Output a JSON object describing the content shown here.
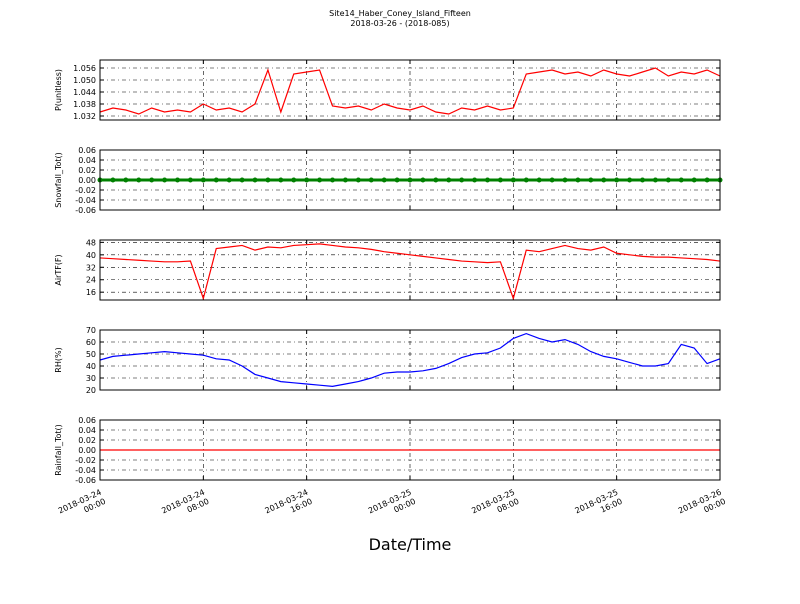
{
  "chart_data": [
    {
      "type": "line",
      "title": "Site14_Haber_Coney_Island_Fifteen",
      "subtitle": "2018-03-26 - (2018-085)",
      "ylabel": "P(unitless)",
      "color": "#ff0000",
      "grid": true,
      "x": [
        "2018-03-24 00:00",
        "2018-03-24 01:00",
        "2018-03-24 02:00",
        "2018-03-24 03:00",
        "2018-03-24 04:00",
        "2018-03-24 05:00",
        "2018-03-24 06:00",
        "2018-03-24 07:00",
        "2018-03-24 08:00",
        "2018-03-24 09:00",
        "2018-03-24 10:00",
        "2018-03-24 11:00",
        "2018-03-24 12:00",
        "2018-03-24 13:00",
        "2018-03-24 14:00",
        "2018-03-24 15:00",
        "2018-03-24 16:00",
        "2018-03-24 17:00",
        "2018-03-24 18:00",
        "2018-03-24 19:00",
        "2018-03-24 20:00",
        "2018-03-24 21:00",
        "2018-03-24 22:00",
        "2018-03-24 23:00",
        "2018-03-25 00:00",
        "2018-03-25 01:00",
        "2018-03-25 02:00",
        "2018-03-25 03:00",
        "2018-03-25 04:00",
        "2018-03-25 05:00",
        "2018-03-25 06:00",
        "2018-03-25 07:00",
        "2018-03-25 08:00",
        "2018-03-25 09:00",
        "2018-03-25 10:00",
        "2018-03-25 11:00",
        "2018-03-25 12:00",
        "2018-03-25 13:00",
        "2018-03-25 14:00",
        "2018-03-25 15:00",
        "2018-03-25 16:00",
        "2018-03-25 17:00",
        "2018-03-25 18:00",
        "2018-03-25 19:00",
        "2018-03-25 20:00",
        "2018-03-25 21:00",
        "2018-03-25 22:00",
        "2018-03-25 23:00",
        "2018-03-26 00:00"
      ],
      "values": [
        1.034,
        1.036,
        1.035,
        1.033,
        1.036,
        1.034,
        1.035,
        1.034,
        1.038,
        1.035,
        1.036,
        1.034,
        1.038,
        1.055,
        1.034,
        1.053,
        1.054,
        1.055,
        1.037,
        1.036,
        1.037,
        1.035,
        1.038,
        1.036,
        1.035,
        1.037,
        1.034,
        1.033,
        1.036,
        1.035,
        1.037,
        1.035,
        1.036,
        1.053,
        1.054,
        1.055,
        1.053,
        1.054,
        1.052,
        1.055,
        1.053,
        1.052,
        1.054,
        1.056,
        1.052,
        1.054,
        1.053,
        1.055,
        1.052
      ],
      "xlim": [
        "2018-03-24 00:00",
        "2018-03-26 00:00"
      ],
      "ylim": [
        1.03,
        1.06
      ],
      "yticks": [
        1.032,
        1.038,
        1.044,
        {
          "value": 1.05,
          "label": "1.050"
        },
        1.056
      ]
    },
    {
      "type": "line",
      "ylabel": "Snowfall_Tot()",
      "color": "#008000",
      "marker": "o",
      "grid": true,
      "x": [
        "2018-03-24 00:00",
        "2018-03-24 01:00",
        "2018-03-24 02:00",
        "2018-03-24 03:00",
        "2018-03-24 04:00",
        "2018-03-24 05:00",
        "2018-03-24 06:00",
        "2018-03-24 07:00",
        "2018-03-24 08:00",
        "2018-03-24 09:00",
        "2018-03-24 10:00",
        "2018-03-24 11:00",
        "2018-03-24 12:00",
        "2018-03-24 13:00",
        "2018-03-24 14:00",
        "2018-03-24 15:00",
        "2018-03-24 16:00",
        "2018-03-24 17:00",
        "2018-03-24 18:00",
        "2018-03-24 19:00",
        "2018-03-24 20:00",
        "2018-03-24 21:00",
        "2018-03-24 22:00",
        "2018-03-24 23:00",
        "2018-03-25 00:00",
        "2018-03-25 01:00",
        "2018-03-25 02:00",
        "2018-03-25 03:00",
        "2018-03-25 04:00",
        "2018-03-25 05:00",
        "2018-03-25 06:00",
        "2018-03-25 07:00",
        "2018-03-25 08:00",
        "2018-03-25 09:00",
        "2018-03-25 10:00",
        "2018-03-25 11:00",
        "2018-03-25 12:00",
        "2018-03-25 13:00",
        "2018-03-25 14:00",
        "2018-03-25 15:00",
        "2018-03-25 16:00",
        "2018-03-25 17:00",
        "2018-03-25 18:00",
        "2018-03-25 19:00",
        "2018-03-25 20:00",
        "2018-03-25 21:00",
        "2018-03-25 22:00",
        "2018-03-25 23:00",
        "2018-03-26 00:00"
      ],
      "values": [
        0,
        0,
        0,
        0,
        0,
        0,
        0,
        0,
        0,
        0,
        0,
        0,
        0,
        0,
        0,
        0,
        0,
        0,
        0,
        0,
        0,
        0,
        0,
        0,
        0,
        0,
        0,
        0,
        0,
        0,
        0,
        0,
        0,
        0,
        0,
        0,
        0,
        0,
        0,
        0,
        0,
        0,
        0,
        0,
        0,
        0,
        0,
        0,
        0
      ],
      "xlim": [
        "2018-03-24 00:00",
        "2018-03-26 00:00"
      ],
      "ylim": [
        -0.06,
        0.06
      ],
      "yticks": [
        -0.06,
        -0.04,
        -0.02,
        {
          "value": 0,
          "label": "0.00"
        },
        0.02,
        0.04,
        0.06
      ]
    },
    {
      "type": "line",
      "ylabel": "AirTF(F)",
      "color": "#ff0000",
      "grid": true,
      "x": [
        "2018-03-24 00:00",
        "2018-03-24 01:00",
        "2018-03-24 02:00",
        "2018-03-24 03:00",
        "2018-03-24 04:00",
        "2018-03-24 05:00",
        "2018-03-24 06:00",
        "2018-03-24 07:00",
        "2018-03-24 08:00",
        "2018-03-24 09:00",
        "2018-03-24 10:00",
        "2018-03-24 11:00",
        "2018-03-24 12:00",
        "2018-03-24 13:00",
        "2018-03-24 14:00",
        "2018-03-24 15:00",
        "2018-03-24 16:00",
        "2018-03-24 17:00",
        "2018-03-24 18:00",
        "2018-03-24 19:00",
        "2018-03-24 20:00",
        "2018-03-24 21:00",
        "2018-03-24 22:00",
        "2018-03-24 23:00",
        "2018-03-25 00:00",
        "2018-03-25 01:00",
        "2018-03-25 02:00",
        "2018-03-25 03:00",
        "2018-03-25 04:00",
        "2018-03-25 05:00",
        "2018-03-25 06:00",
        "2018-03-25 07:00",
        "2018-03-25 08:00",
        "2018-03-25 09:00",
        "2018-03-25 10:00",
        "2018-03-25 11:00",
        "2018-03-25 12:00",
        "2018-03-25 13:00",
        "2018-03-25 14:00",
        "2018-03-25 15:00",
        "2018-03-25 16:00",
        "2018-03-25 17:00",
        "2018-03-25 18:00",
        "2018-03-25 19:00",
        "2018-03-25 20:00",
        "2018-03-25 21:00",
        "2018-03-25 22:00",
        "2018-03-25 23:00",
        "2018-03-26 00:00"
      ],
      "values": [
        38,
        37.5,
        37,
        36.5,
        36,
        35.5,
        35.5,
        36,
        12,
        44,
        45,
        46,
        43,
        45,
        44.5,
        46,
        46.5,
        47,
        46,
        45,
        44.5,
        43.5,
        42,
        41,
        40,
        39,
        38,
        37,
        36,
        35.5,
        35,
        35.5,
        12,
        43,
        42,
        44,
        46,
        44,
        43,
        45,
        41,
        40,
        39,
        38.5,
        38.5,
        38,
        37.5,
        37,
        36
      ],
      "xlim": [
        "2018-03-24 00:00",
        "2018-03-26 00:00"
      ],
      "ylim": [
        11,
        49.5
      ],
      "yticks": [
        16,
        24,
        32,
        40,
        48
      ]
    },
    {
      "type": "line",
      "ylabel": "RH(%)",
      "color": "#0000ff",
      "grid": true,
      "x": [
        "2018-03-24 00:00",
        "2018-03-24 01:00",
        "2018-03-24 02:00",
        "2018-03-24 03:00",
        "2018-03-24 04:00",
        "2018-03-24 05:00",
        "2018-03-24 06:00",
        "2018-03-24 07:00",
        "2018-03-24 08:00",
        "2018-03-24 09:00",
        "2018-03-24 10:00",
        "2018-03-24 11:00",
        "2018-03-24 12:00",
        "2018-03-24 13:00",
        "2018-03-24 14:00",
        "2018-03-24 15:00",
        "2018-03-24 16:00",
        "2018-03-24 17:00",
        "2018-03-24 18:00",
        "2018-03-24 19:00",
        "2018-03-24 20:00",
        "2018-03-24 21:00",
        "2018-03-24 22:00",
        "2018-03-24 23:00",
        "2018-03-25 00:00",
        "2018-03-25 01:00",
        "2018-03-25 02:00",
        "2018-03-25 03:00",
        "2018-03-25 04:00",
        "2018-03-25 05:00",
        "2018-03-25 06:00",
        "2018-03-25 07:00",
        "2018-03-25 08:00",
        "2018-03-25 09:00",
        "2018-03-25 10:00",
        "2018-03-25 11:00",
        "2018-03-25 12:00",
        "2018-03-25 13:00",
        "2018-03-25 14:00",
        "2018-03-25 15:00",
        "2018-03-25 16:00",
        "2018-03-25 17:00",
        "2018-03-25 18:00",
        "2018-03-25 19:00",
        "2018-03-25 20:00",
        "2018-03-25 21:00",
        "2018-03-25 22:00",
        "2018-03-25 23:00",
        "2018-03-26 00:00"
      ],
      "values": [
        45,
        48,
        49,
        50,
        51,
        52,
        51,
        50,
        49,
        46,
        45,
        40,
        33,
        30,
        27,
        26,
        25,
        24,
        23,
        25,
        27,
        30,
        34,
        35,
        35,
        36,
        38,
        42,
        47,
        50,
        51,
        55,
        63,
        67,
        63,
        60,
        62,
        58,
        52,
        48,
        46,
        43,
        40,
        40,
        42,
        58,
        55,
        42,
        46
      ],
      "xlim": [
        "2018-03-24 00:00",
        "2018-03-26 00:00"
      ],
      "ylim": [
        20,
        70
      ],
      "yticks": [
        20,
        30,
        40,
        50,
        60,
        70
      ]
    },
    {
      "type": "line",
      "ylabel": "Rainfall_Tot()",
      "xlabel": "Date/Time",
      "color": "#ff0000",
      "grid": true,
      "x": [
        "2018-03-24 00:00",
        "2018-03-24 01:00",
        "2018-03-24 02:00",
        "2018-03-24 03:00",
        "2018-03-24 04:00",
        "2018-03-24 05:00",
        "2018-03-24 06:00",
        "2018-03-24 07:00",
        "2018-03-24 08:00",
        "2018-03-24 09:00",
        "2018-03-24 10:00",
        "2018-03-24 11:00",
        "2018-03-24 12:00",
        "2018-03-24 13:00",
        "2018-03-24 14:00",
        "2018-03-24 15:00",
        "2018-03-24 16:00",
        "2018-03-24 17:00",
        "2018-03-24 18:00",
        "2018-03-24 19:00",
        "2018-03-24 20:00",
        "2018-03-24 21:00",
        "2018-03-24 22:00",
        "2018-03-24 23:00",
        "2018-03-25 00:00",
        "2018-03-25 01:00",
        "2018-03-25 02:00",
        "2018-03-25 03:00",
        "2018-03-25 04:00",
        "2018-03-25 05:00",
        "2018-03-25 06:00",
        "2018-03-25 07:00",
        "2018-03-25 08:00",
        "2018-03-25 09:00",
        "2018-03-25 10:00",
        "2018-03-25 11:00",
        "2018-03-25 12:00",
        "2018-03-25 13:00",
        "2018-03-25 14:00",
        "2018-03-25 15:00",
        "2018-03-25 16:00",
        "2018-03-25 17:00",
        "2018-03-25 18:00",
        "2018-03-25 19:00",
        "2018-03-25 20:00",
        "2018-03-25 21:00",
        "2018-03-25 22:00",
        "2018-03-25 23:00",
        "2018-03-26 00:00"
      ],
      "values": [
        0,
        0,
        0,
        0,
        0,
        0,
        0,
        0,
        0,
        0,
        0,
        0,
        0,
        0,
        0,
        0,
        0,
        0,
        0,
        0,
        0,
        0,
        0,
        0,
        0,
        0,
        0,
        0,
        0,
        0,
        0,
        0,
        0,
        0,
        0,
        0,
        0,
        0,
        0,
        0,
        0,
        0,
        0,
        0,
        0,
        0,
        0,
        0,
        0
      ],
      "xlim": [
        "2018-03-24 00:00",
        "2018-03-26 00:00"
      ],
      "ylim": [
        -0.06,
        0.06
      ],
      "yticks": [
        -0.06,
        -0.04,
        -0.02,
        {
          "value": 0,
          "label": "0.00"
        },
        0.02,
        0.04,
        0.06
      ],
      "xticks": [
        "2018-03-24 00:00",
        "2018-03-24 08:00",
        "2018-03-24 16:00",
        "2018-03-25 00:00",
        "2018-03-25 08:00",
        "2018-03-25 16:00",
        "2018-03-26 00:00"
      ]
    }
  ]
}
